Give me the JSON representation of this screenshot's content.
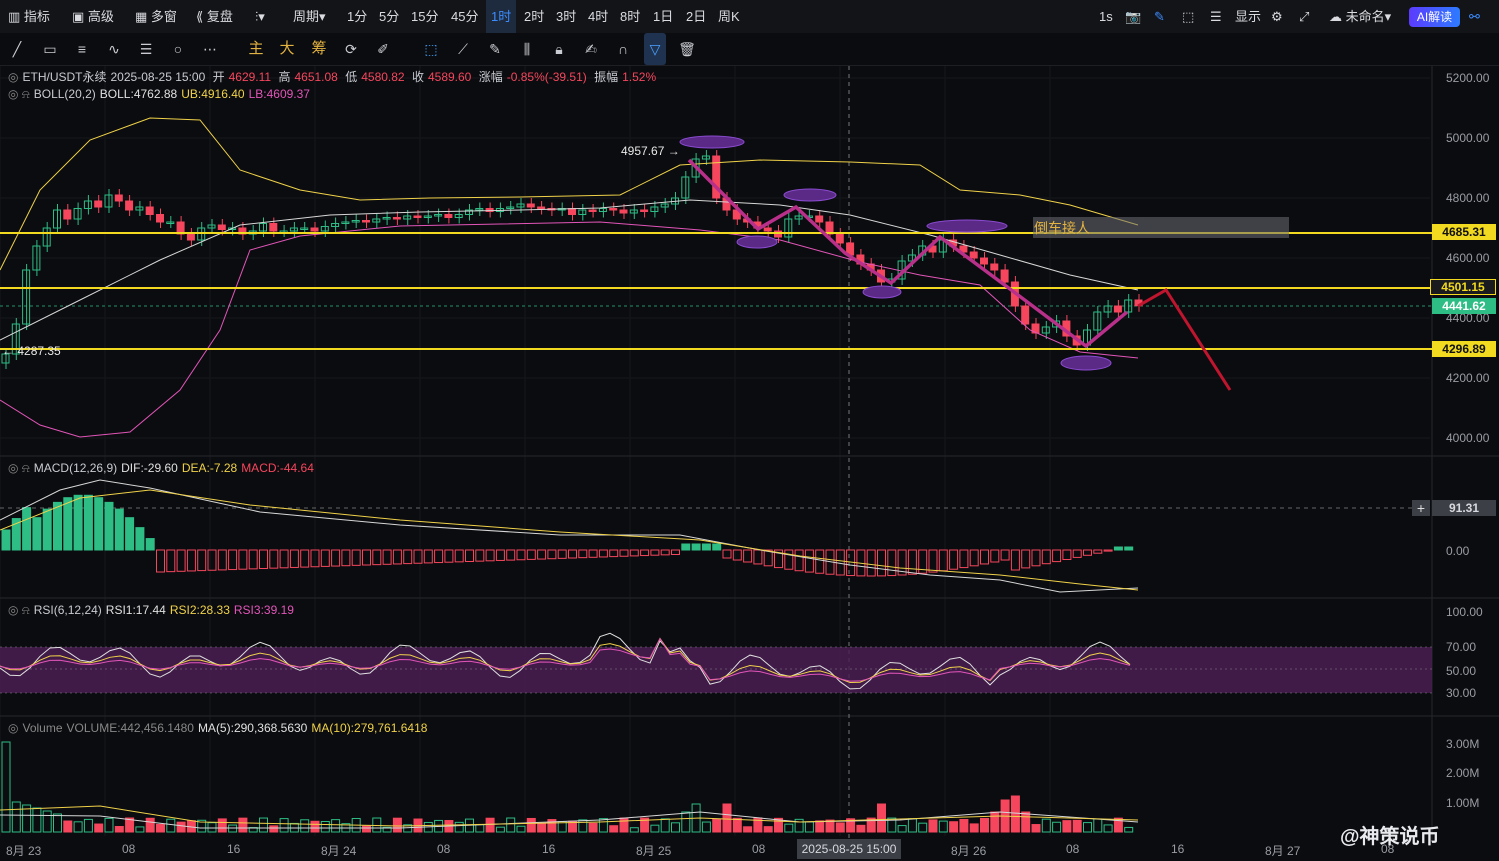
{
  "topbar": {
    "items": [
      "指标",
      "高级",
      "多窗",
      "复盘",
      "",
      "周期",
      "1分",
      "5分",
      "15分",
      "45分",
      "1时",
      "2时",
      "3时",
      "4时",
      "8时",
      "1日",
      "2日",
      "周K"
    ],
    "selected_interval": "1时",
    "right": {
      "rate": "1s",
      "display": "显示",
      "unnamed": "未命名",
      "ai": "AI解读"
    }
  },
  "toolbar2": {
    "gold_tools": [
      "主",
      "大",
      "筹"
    ]
  },
  "legend": {
    "symbol": "ETH/USDT永续",
    "datetime": "2025-08-25 15:00",
    "open_label": "开",
    "open": "4629.11",
    "high_label": "高",
    "high": "4651.08",
    "low_label": "低",
    "low": "4580.82",
    "close_label": "收",
    "close": "4589.60",
    "change_label": "涨幅",
    "change": "-0.85%(-39.51)",
    "amp_label": "振幅",
    "amp": "1.52%",
    "boll_name": "BOLL(20,2)",
    "boll": "BOLL:4762.88",
    "ub": "UB:4916.40",
    "lb": "LB:4609.37",
    "macd_name": "MACD(12,26,9)",
    "dif": "DIF:-29.60",
    "dea": "DEA:-7.28",
    "macd": "MACD:-44.64",
    "rsi_name": "RSI(6,12,24)",
    "rsi1": "RSI1:17.44",
    "rsi2": "RSI2:28.33",
    "rsi3": "RSI3:39.19",
    "vol_name": "Volume",
    "vol": "VOLUME:442,456.1480",
    "ma5": "MA(5):290,368.5630",
    "ma10": "MA(10):279,761.6418"
  },
  "price_axis": [
    "5200.00",
    "5000.00",
    "4800.00",
    "4600.00",
    "4400.00",
    "4200.00",
    "4000.00"
  ],
  "price_tags": {
    "t1": "4685.31",
    "t2": "4501.15",
    "current": "4441.62",
    "t3": "4296.89"
  },
  "macd_axis": {
    "cross": "91.31",
    "zero": "0.00"
  },
  "rsi_axis": [
    "100.00",
    "70.00",
    "50.00",
    "30.00"
  ],
  "vol_axis": [
    "3.00M",
    "2.00M",
    "1.00M"
  ],
  "annotations": {
    "high": "4957.67",
    "low": "4287.35",
    "box": "倒车接人"
  },
  "dates": [
    "8月 23",
    "08",
    "16",
    "8月 24",
    "08",
    "16",
    "8月 25",
    "08",
    "8月 26",
    "08",
    "16",
    "8月 27",
    "08"
  ],
  "crosshair_date": "2025-08-25 15:00",
  "watermark": "@神策说币",
  "colors": {
    "up": "#2ebd85",
    "down": "#f6465d",
    "boll_mid": "#d7d7d7",
    "boll_up": "#f0d24a",
    "boll_lo": "#e255b9",
    "hline": "#f1da1f",
    "zigzag": "#b8308a",
    "projection": "#c0152e",
    "ellipse": "#5b2a86"
  }
}
